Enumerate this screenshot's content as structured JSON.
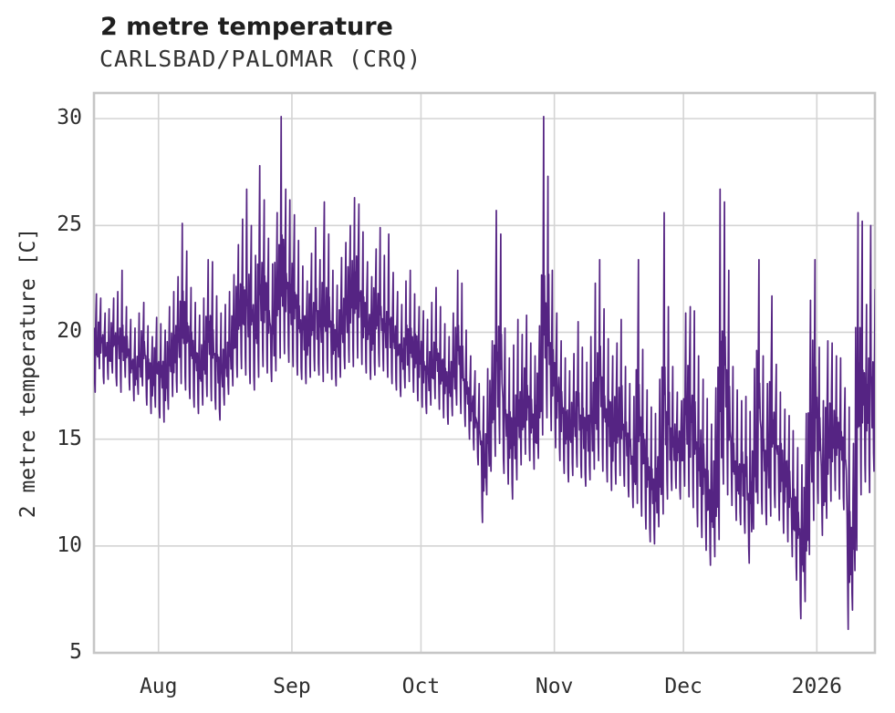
{
  "chart_data": {
    "type": "line",
    "title": "2 metre temperature",
    "subtitle": "CARLSBAD/PALOMAR (CRQ)",
    "ylabel": "2 metre temperature [C]",
    "grid": true,
    "legend": "none",
    "colors": {
      "line": "#552483",
      "grid": "#d4d4d4",
      "border": "#c6c6c6",
      "title_text": "#1f1f1f",
      "text": "#2e2e2e"
    },
    "y_axis": {
      "ticks": [
        5,
        10,
        15,
        20,
        25,
        30
      ],
      "lim": [
        5,
        31.2
      ]
    },
    "x_axis": {
      "tick_labels": [
        "Aug",
        "Sep",
        "Oct",
        "Nov",
        "Dec",
        "2026"
      ],
      "tick_days": [
        15,
        46,
        76,
        107,
        137,
        168
      ],
      "total_days": 181.5
    },
    "series": [
      {
        "name": "2 metre temperature",
        "unit": "C",
        "x_unit": "day_index_from_left_edge",
        "daily_min_max": [
          [
            17.2,
            21.8
          ],
          [
            18.3,
            21.6
          ],
          [
            17.6,
            20.9
          ],
          [
            17.8,
            21.1
          ],
          [
            18.1,
            21.6
          ],
          [
            17.5,
            21.9
          ],
          [
            17.2,
            22.9
          ],
          [
            17.9,
            21.2
          ],
          [
            17.3,
            20.6
          ],
          [
            16.8,
            20.2
          ],
          [
            17.1,
            20.9
          ],
          [
            17.5,
            21.4
          ],
          [
            16.6,
            20.3
          ],
          [
            16.2,
            19.8
          ],
          [
            16.5,
            20.7
          ],
          [
            16.0,
            20.4
          ],
          [
            15.8,
            20.1
          ],
          [
            16.4,
            21.2
          ],
          [
            17.0,
            21.9
          ],
          [
            17.2,
            22.6
          ],
          [
            17.6,
            25.1
          ],
          [
            17.3,
            23.8
          ],
          [
            16.9,
            22.1
          ],
          [
            16.5,
            21.4
          ],
          [
            16.2,
            20.8
          ],
          [
            16.6,
            21.6
          ],
          [
            17.0,
            23.4
          ],
          [
            16.8,
            23.3
          ],
          [
            16.4,
            21.7
          ],
          [
            15.9,
            20.9
          ],
          [
            16.6,
            21.3
          ],
          [
            17.1,
            21.9
          ],
          [
            17.5,
            22.7
          ],
          [
            17.9,
            24.1
          ],
          [
            18.3,
            25.3
          ],
          [
            18.0,
            26.7
          ],
          [
            17.6,
            25.0
          ],
          [
            17.3,
            23.6
          ],
          [
            17.9,
            27.8
          ],
          [
            18.4,
            26.2
          ],
          [
            18.1,
            24.4
          ],
          [
            17.7,
            23.2
          ],
          [
            18.2,
            25.6
          ],
          [
            18.8,
            30.1
          ],
          [
            19.0,
            26.7
          ],
          [
            18.6,
            26.2
          ],
          [
            18.4,
            25.5
          ],
          [
            18.0,
            24.3
          ],
          [
            17.8,
            23.1
          ],
          [
            17.6,
            22.4
          ],
          [
            17.9,
            23.7
          ],
          [
            18.2,
            24.9
          ],
          [
            18.0,
            23.4
          ],
          [
            17.7,
            26.1
          ],
          [
            18.1,
            24.6
          ],
          [
            17.8,
            22.9
          ],
          [
            17.5,
            22.2
          ],
          [
            17.9,
            23.5
          ],
          [
            18.3,
            24.2
          ],
          [
            18.6,
            25.0
          ],
          [
            18.4,
            26.3
          ],
          [
            18.8,
            26.0
          ],
          [
            18.5,
            24.7
          ],
          [
            18.1,
            23.3
          ],
          [
            17.8,
            22.6
          ],
          [
            18.0,
            23.9
          ],
          [
            18.4,
            24.9
          ],
          [
            18.2,
            23.6
          ],
          [
            17.9,
            24.6
          ],
          [
            17.6,
            22.8
          ],
          [
            17.3,
            21.9
          ],
          [
            17.0,
            21.3
          ],
          [
            17.4,
            22.4
          ],
          [
            17.7,
            22.9
          ],
          [
            17.2,
            21.8
          ],
          [
            16.8,
            21.2
          ],
          [
            16.5,
            21.0
          ],
          [
            16.2,
            20.6
          ],
          [
            16.6,
            21.4
          ],
          [
            16.9,
            22.1
          ],
          [
            16.4,
            21.2
          ],
          [
            16.0,
            20.4
          ],
          [
            15.7,
            19.8
          ],
          [
            16.1,
            20.9
          ],
          [
            16.6,
            22.9
          ],
          [
            16.2,
            22.3
          ],
          [
            15.6,
            20.1
          ],
          [
            15.0,
            18.9
          ],
          [
            14.5,
            18.2
          ],
          [
            13.8,
            17.6
          ],
          [
            11.1,
            17.0
          ],
          [
            12.4,
            18.3
          ],
          [
            13.5,
            19.6
          ],
          [
            14.2,
            25.7
          ],
          [
            14.8,
            24.6
          ],
          [
            13.4,
            20.2
          ],
          [
            12.9,
            18.8
          ],
          [
            12.2,
            19.4
          ],
          [
            13.1,
            20.6
          ],
          [
            13.8,
            19.9
          ],
          [
            14.3,
            20.8
          ],
          [
            14.0,
            19.5
          ],
          [
            13.6,
            18.9
          ],
          [
            14.1,
            20.3
          ],
          [
            15.2,
            30.1
          ],
          [
            16.0,
            27.3
          ],
          [
            15.4,
            22.9
          ],
          [
            14.6,
            20.9
          ],
          [
            14.0,
            19.6
          ],
          [
            13.4,
            18.8
          ],
          [
            13.0,
            18.2
          ],
          [
            13.3,
            19.0
          ],
          [
            13.7,
            20.5
          ],
          [
            13.2,
            19.3
          ],
          [
            12.8,
            18.6
          ],
          [
            13.1,
            19.8
          ],
          [
            13.6,
            22.3
          ],
          [
            14.0,
            23.4
          ],
          [
            13.5,
            21.1
          ],
          [
            13.0,
            19.7
          ],
          [
            12.6,
            18.9
          ],
          [
            12.9,
            19.5
          ],
          [
            13.3,
            20.6
          ],
          [
            12.8,
            18.4
          ],
          [
            12.3,
            17.6
          ],
          [
            11.8,
            17.0
          ],
          [
            12.0,
            23.4
          ],
          [
            11.4,
            19.2
          ],
          [
            10.8,
            17.3
          ],
          [
            10.2,
            16.5
          ],
          [
            10.1,
            16.2
          ],
          [
            10.9,
            17.8
          ],
          [
            11.5,
            25.6
          ],
          [
            12.2,
            21.2
          ],
          [
            12.6,
            18.4
          ],
          [
            12.7,
            17.2
          ],
          [
            12.2,
            16.8
          ],
          [
            12.8,
            20.9
          ],
          [
            12.3,
            21.2
          ],
          [
            11.8,
            21.0
          ],
          [
            10.9,
            18.9
          ],
          [
            10.4,
            17.8
          ],
          [
            9.8,
            16.9
          ],
          [
            9.1,
            15.7
          ],
          [
            9.5,
            17.4
          ],
          [
            10.3,
            26.7
          ],
          [
            12.9,
            26.1
          ],
          [
            12.4,
            22.9
          ],
          [
            11.9,
            18.4
          ],
          [
            11.2,
            17.3
          ],
          [
            11.0,
            16.8
          ],
          [
            10.6,
            17.0
          ],
          [
            9.2,
            16.3
          ],
          [
            10.8,
            18.3
          ],
          [
            12.0,
            23.4
          ],
          [
            11.5,
            18.9
          ],
          [
            11.0,
            17.6
          ],
          [
            11.4,
            21.7
          ],
          [
            11.8,
            18.5
          ],
          [
            11.2,
            17.2
          ],
          [
            10.6,
            16.4
          ],
          [
            10.2,
            16.1
          ],
          [
            9.5,
            15.4
          ],
          [
            8.4,
            14.6
          ],
          [
            6.6,
            13.8
          ],
          [
            7.4,
            16.2
          ],
          [
            9.6,
            21.5
          ],
          [
            11.2,
            23.4
          ],
          [
            12.0,
            19.3
          ],
          [
            10.5,
            16.8
          ],
          [
            11.3,
            19.6
          ],
          [
            12.1,
            19.5
          ],
          [
            12.6,
            18.9
          ],
          [
            12.2,
            18.8
          ],
          [
            11.7,
            17.4
          ],
          [
            6.1,
            16.5
          ],
          [
            7.0,
            14.8
          ],
          [
            9.8,
            25.6
          ],
          [
            12.4,
            25.2
          ],
          [
            13.0,
            21.3
          ],
          [
            12.5,
            25.0
          ],
          [
            13.5,
            22.0
          ]
        ]
      }
    ]
  }
}
